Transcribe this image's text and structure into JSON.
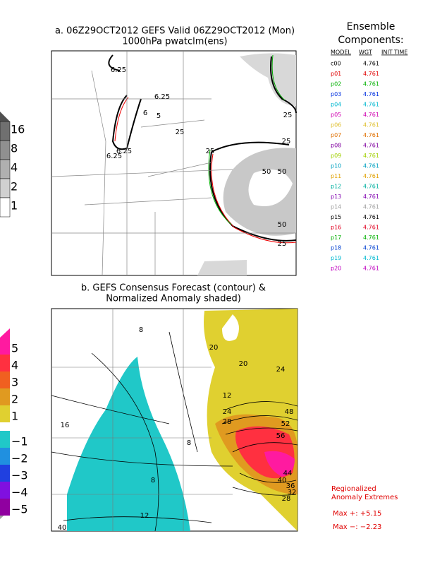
{
  "panel_a": {
    "title": [
      "a. 06Z29OCT2012 GEFS Valid 06Z29OCT2012 (Mon)",
      "1000hPa pwatclm(ens)"
    ],
    "colorbar": [
      {
        "label": "16",
        "color": "#707070"
      },
      {
        "label": "8",
        "color": "#909090"
      },
      {
        "label": "4",
        "color": "#b0b0b0"
      },
      {
        "label": "2",
        "color": "#d0d0d0"
      },
      {
        "label": "1",
        "color": "#ffffff"
      }
    ],
    "contour_labels": [
      "6.25",
      "6.25",
      "6",
      "5",
      "6.25",
      "6.25",
      "25",
      "25",
      "25",
      "50",
      "50",
      "25",
      "25",
      "50"
    ]
  },
  "ensemble": {
    "title": [
      "Ensemble",
      "Components:"
    ],
    "headers": [
      "MODEL",
      "WGT",
      "INIT TIME"
    ],
    "rows": [
      {
        "model": "c00",
        "wgt": "4.761",
        "color": "#000000"
      },
      {
        "model": "p01",
        "wgt": "4.761",
        "color": "#e00000"
      },
      {
        "model": "p02",
        "wgt": "4.761",
        "color": "#00b000"
      },
      {
        "model": "p03",
        "wgt": "4.761",
        "color": "#0030e0"
      },
      {
        "model": "p04",
        "wgt": "4.761",
        "color": "#00b8d0"
      },
      {
        "model": "p05",
        "wgt": "4.761",
        "color": "#d000b0"
      },
      {
        "model": "p06",
        "wgt": "4.761",
        "color": "#e0c030"
      },
      {
        "model": "p07",
        "wgt": "4.761",
        "color": "#e07000"
      },
      {
        "model": "p08",
        "wgt": "4.761",
        "color": "#8000a0"
      },
      {
        "model": "p09",
        "wgt": "4.761",
        "color": "#a0d000"
      },
      {
        "model": "p10",
        "wgt": "4.761",
        "color": "#00a0c0"
      },
      {
        "model": "p11",
        "wgt": "4.761",
        "color": "#e0a000"
      },
      {
        "model": "p12",
        "wgt": "4.761",
        "color": "#00b0a0"
      },
      {
        "model": "p13",
        "wgt": "4.761",
        "color": "#8000b0"
      },
      {
        "model": "p14",
        "wgt": "4.761",
        "color": "#a0a0a0"
      },
      {
        "model": "p15",
        "wgt": "4.761",
        "color": "#000000"
      },
      {
        "model": "p16",
        "wgt": "4.761",
        "color": "#e00020"
      },
      {
        "model": "p17",
        "wgt": "4.761",
        "color": "#00b000"
      },
      {
        "model": "p18",
        "wgt": "4.761",
        "color": "#0040d0"
      },
      {
        "model": "p19",
        "wgt": "4.761",
        "color": "#00b8d0"
      },
      {
        "model": "p20",
        "wgt": "4.761",
        "color": "#c000c0"
      }
    ]
  },
  "panel_b": {
    "title": [
      "b. GEFS Consensus Forecast (contour) &",
      "Normalized Anomaly shaded)"
    ],
    "colorbar": [
      {
        "label": "5",
        "color": "#ff1aa0"
      },
      {
        "label": "4",
        "color": "#ff3040"
      },
      {
        "label": "3",
        "color": "#f06020"
      },
      {
        "label": "2",
        "color": "#e09a20"
      },
      {
        "label": "1",
        "color": "#e0d030"
      },
      {
        "label": "−1",
        "color": "#20c8c8"
      },
      {
        "label": "−2",
        "color": "#2090e0"
      },
      {
        "label": "−3",
        "color": "#2040e0"
      },
      {
        "label": "−4",
        "color": "#8010e0"
      },
      {
        "label": "−5",
        "color": "#9000a0"
      }
    ],
    "contour_labels": [
      "8",
      "20",
      "20",
      "24",
      "24",
      "28",
      "12",
      "16",
      "8",
      "8",
      "12",
      "40",
      "48",
      "52",
      "56",
      "44",
      "40",
      "36",
      "32",
      "28"
    ]
  },
  "extremes": {
    "title": [
      "Regionalized",
      "Anomaly Extremes"
    ],
    "max_plus": "Max +:  +5.15",
    "max_minus": "Max −:  −2.23"
  }
}
